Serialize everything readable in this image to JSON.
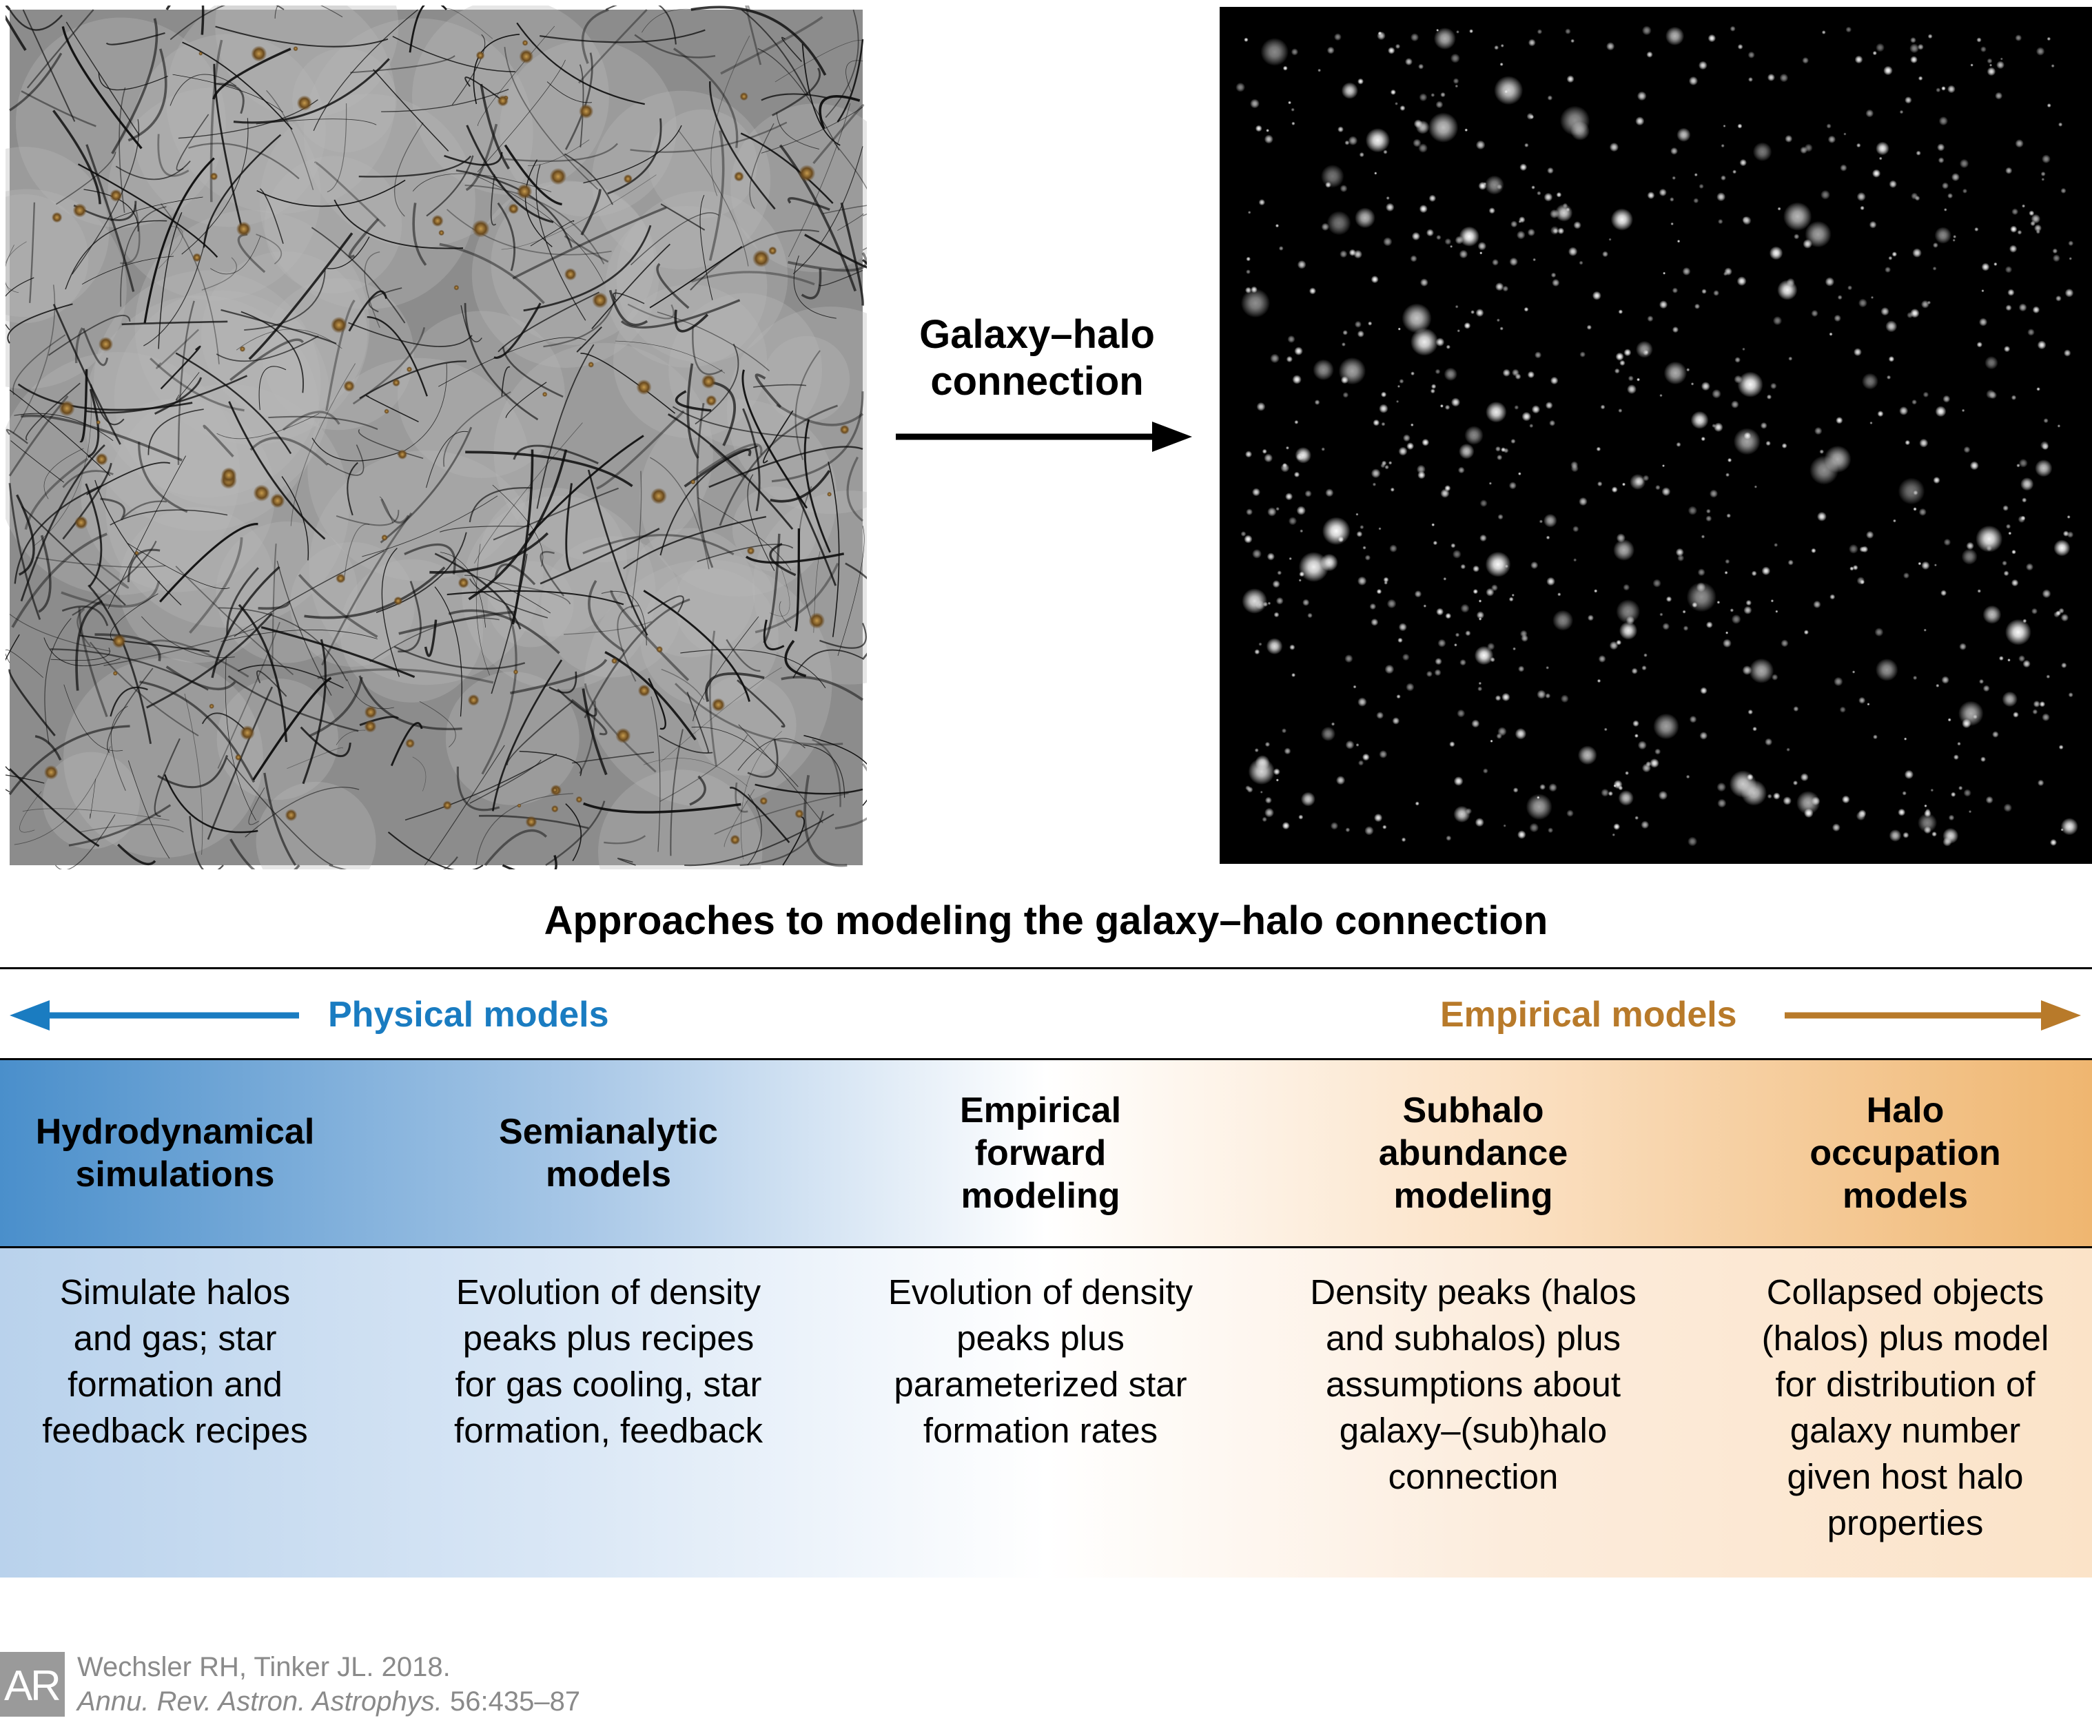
{
  "images": {
    "dark_matter_icon": "dark-matter-web-icon",
    "galaxy_icon": "galaxy-distribution-icon"
  },
  "connection": {
    "label": "Galaxy–halo\nconnection"
  },
  "section": {
    "title": "Approaches to modeling the galaxy–halo connection",
    "physical_label": "Physical models",
    "empirical_label": "Empirical models"
  },
  "colors": {
    "physical": "#1a7cc1",
    "empirical": "#b87a2a",
    "header_left": "#4a8fcb",
    "header_right": "#efb670"
  },
  "columns": [
    {
      "title": "Hydrodynamical\nsimulations",
      "description": "Simulate halos\nand gas; star\nformation and\nfeedback recipes"
    },
    {
      "title": "Semianalytic\nmodels",
      "description": "Evolution of density\npeaks plus recipes\nfor gas cooling, star\nformation, feedback"
    },
    {
      "title": "Empirical\nforward\nmodeling",
      "description": "Evolution of density\npeaks plus\nparameterized star\nformation rates"
    },
    {
      "title": "Subhalo\nabundance\nmodeling",
      "description": "Density peaks (halos\nand subhalos) plus\nassumptions about\ngalaxy–(sub)halo\nconnection"
    },
    {
      "title": "Halo\noccupation\nmodels",
      "description": "Collapsed objects\n(halos) plus model\nfor distribution of\ngalaxy number\ngiven host halo\nproperties"
    }
  ],
  "citation": {
    "logo": "AR",
    "authors": "Wechsler RH, Tinker JL. 2018.",
    "journal": "Annu. Rev. Astron. Astrophys.",
    "volume": " 56:435–87"
  }
}
